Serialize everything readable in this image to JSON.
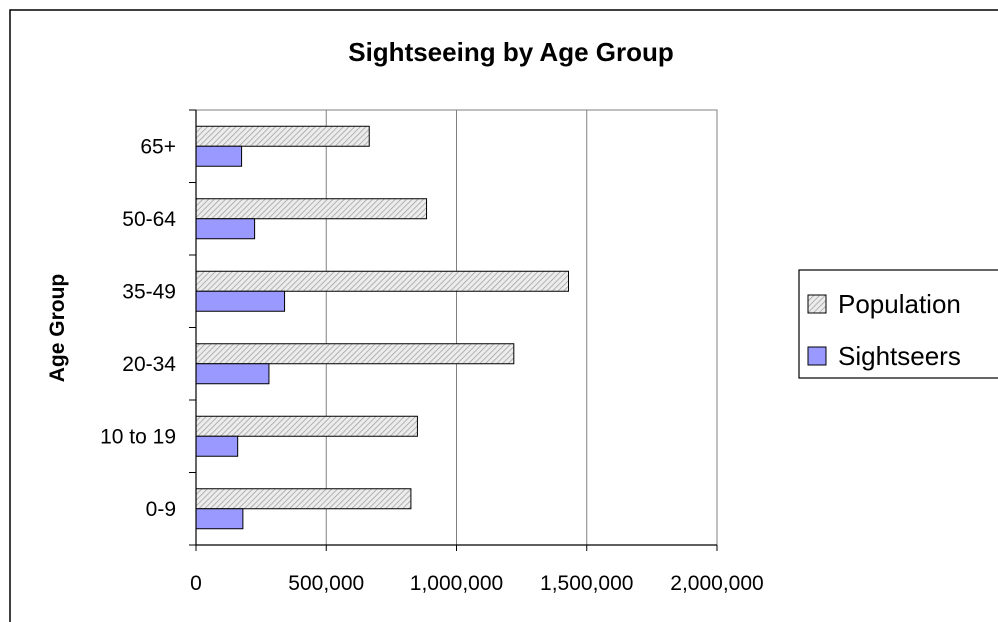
{
  "chart_data": {
    "type": "bar",
    "orientation": "horizontal",
    "title": "Sightseeing by Age Group",
    "xlabel": "",
    "ylabel": "Age Group",
    "categories": [
      "0-9",
      "10 to 19",
      "20-34",
      "35-49",
      "50-64",
      "65+"
    ],
    "series": [
      {
        "name": "Population",
        "values": [
          825000,
          850000,
          1220000,
          1430000,
          885000,
          665000
        ],
        "color": "#e0e0e0",
        "pattern": "diagonal-hatch"
      },
      {
        "name": "Sightseers",
        "values": [
          180000,
          160000,
          280000,
          340000,
          225000,
          175000
        ],
        "color": "#9999ff"
      }
    ],
    "xlim": [
      0,
      2000000
    ],
    "x_ticks": [
      0,
      500000,
      1000000,
      1500000,
      2000000
    ],
    "x_tick_labels": [
      "0",
      "500,000",
      "1,000,000",
      "1,500,000",
      "2,000,000"
    ],
    "grid": "vertical",
    "legend_position": "right"
  }
}
